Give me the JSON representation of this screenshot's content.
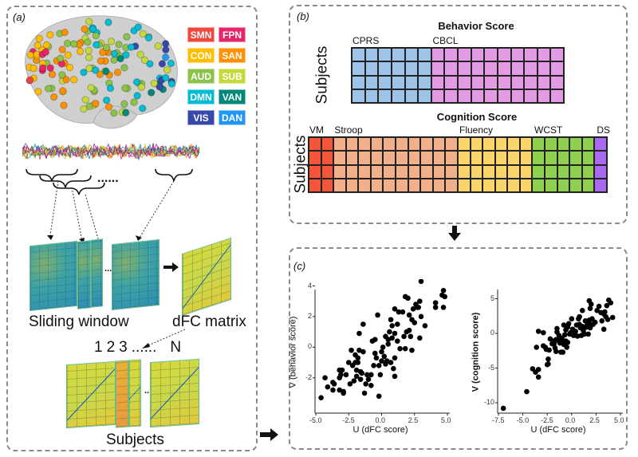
{
  "panels": {
    "a": "(a)",
    "b": "(b)",
    "c": "(c)"
  },
  "legend": [
    {
      "label": "SMN",
      "color": "#f2473c"
    },
    {
      "label": "FPN",
      "color": "#e8256b"
    },
    {
      "label": "CON",
      "color": "#ffbf00"
    },
    {
      "label": "SAN",
      "color": "#ff9100"
    },
    {
      "label": "AUD",
      "color": "#8bc34a"
    },
    {
      "label": "SUB",
      "color": "#c6d83a"
    },
    {
      "label": "DMN",
      "color": "#00bcd4"
    },
    {
      "label": "VAN",
      "color": "#00897b"
    },
    {
      "label": "VIS",
      "color": "#3949ab"
    },
    {
      "label": "DAN",
      "color": "#2196f3"
    }
  ],
  "pipeline": {
    "dots": "......",
    "sliding_window": "Sliding window",
    "dfc_matrix": "dFC matrix",
    "subject_numbers": [
      "1",
      "2",
      "3",
      "......",
      "N"
    ],
    "subjects": "Subjects"
  },
  "behavior": {
    "title": "Behavior Score",
    "row_label": "Subjects",
    "rows": 4,
    "groups": [
      {
        "label": "CPRS",
        "cols": 6,
        "color": "#9dc3e6"
      },
      {
        "label": "CBCL",
        "cols": 10,
        "color": "#e39be3"
      }
    ]
  },
  "cognition": {
    "title": "Cognition Score",
    "row_label": "Subjects",
    "rows": 4,
    "groups": [
      {
        "label": "VM",
        "cols": 2,
        "color": "#f5563a"
      },
      {
        "label": "Stroop",
        "cols": 10,
        "color": "#f2b08a"
      },
      {
        "label": "Fluency",
        "cols": 6,
        "color": "#fcd56a"
      },
      {
        "label": "WCST",
        "cols": 5,
        "color": "#8fd14f"
      },
      {
        "label": "DS",
        "cols": 1,
        "color": "#a86af0"
      }
    ]
  },
  "chart_data": [
    {
      "type": "scatter",
      "xlabel": "U (dFC score)",
      "ylabel": "V (behavior score)",
      "xlim": [
        -5,
        5
      ],
      "ylim": [
        -3.4,
        4.6
      ],
      "xticks": [
        "-5.0",
        "-2.5",
        "0.0",
        "2.5",
        "5.0"
      ],
      "xtick_values": [
        -5,
        -2.5,
        0,
        2.5,
        5
      ],
      "yticks": [
        "-2",
        "0",
        "2",
        "4"
      ],
      "ytick_values": [
        -2,
        0,
        2,
        4
      ],
      "points": [
        [
          -4.6,
          -3.3
        ],
        [
          -4.3,
          -2.0
        ],
        [
          -4.1,
          -2.6
        ],
        [
          -3.7,
          -2.3
        ],
        [
          -3.6,
          -2.4
        ],
        [
          -3.7,
          -2.8
        ],
        [
          -3.2,
          -1.5
        ],
        [
          -3.0,
          -1.5
        ],
        [
          -3.1,
          -1.8
        ],
        [
          -3.2,
          -2.0
        ],
        [
          -3.2,
          -2.8
        ],
        [
          -2.9,
          -2.9
        ],
        [
          -2.9,
          -3.0
        ],
        [
          -2.7,
          -1.8
        ],
        [
          -2.5,
          -1.0
        ],
        [
          -2.4,
          -2.4
        ],
        [
          -2.3,
          -0.2
        ],
        [
          -2.2,
          -1.2
        ],
        [
          -2.1,
          -2.2
        ],
        [
          -2.0,
          -0.5
        ],
        [
          -2.0,
          -1.0
        ],
        [
          -1.9,
          -1.5
        ],
        [
          -1.9,
          -1.9
        ],
        [
          -1.8,
          -0.7
        ],
        [
          -1.8,
          -1.0
        ],
        [
          -1.7,
          -0.2
        ],
        [
          -1.7,
          0.9
        ],
        [
          -1.6,
          -1.6
        ],
        [
          -1.6,
          -2.1
        ],
        [
          -1.5,
          -1.7
        ],
        [
          -1.4,
          1.5
        ],
        [
          -1.4,
          -0.3
        ],
        [
          -1.3,
          -3.0
        ],
        [
          -1.2,
          -2.4
        ],
        [
          -1.1,
          -1.8
        ],
        [
          -1.0,
          -2.1
        ],
        [
          -0.8,
          -1.8
        ],
        [
          -0.8,
          -2.5
        ],
        [
          -0.7,
          0.4
        ],
        [
          -0.6,
          -1.2
        ],
        [
          -0.5,
          -0.4
        ],
        [
          -0.5,
          0.5
        ],
        [
          -0.4,
          -0.7
        ],
        [
          -0.3,
          2.1
        ],
        [
          -0.2,
          -1.2
        ],
        [
          -0.2,
          -3.2
        ],
        [
          -0.1,
          -1.8
        ],
        [
          0.0,
          -0.9
        ],
        [
          0.0,
          -0.3
        ],
        [
          0.1,
          0.0
        ],
        [
          0.2,
          -0.6
        ],
        [
          0.3,
          -1.1
        ],
        [
          0.3,
          0.7
        ],
        [
          0.4,
          -0.9
        ],
        [
          0.5,
          0.5
        ],
        [
          0.5,
          0.2
        ],
        [
          0.6,
          1.0
        ],
        [
          0.7,
          -1.0
        ],
        [
          0.7,
          1.8
        ],
        [
          0.8,
          0.6
        ],
        [
          0.8,
          1.4
        ],
        [
          0.9,
          -1.4
        ],
        [
          1.0,
          0.9
        ],
        [
          1.0,
          -0.7
        ],
        [
          1.0,
          -1.9
        ],
        [
          1.0,
          2.5
        ],
        [
          1.2,
          1.5
        ],
        [
          1.2,
          0.4
        ],
        [
          1.3,
          2.3
        ],
        [
          1.4,
          -0.1
        ],
        [
          1.6,
          2.3
        ],
        [
          1.7,
          0.7
        ],
        [
          1.8,
          3.3
        ],
        [
          1.8,
          -0.1
        ],
        [
          1.9,
          1.0
        ],
        [
          2.0,
          3.2
        ],
        [
          2.1,
          2.1
        ],
        [
          2.1,
          1.1
        ],
        [
          2.2,
          0.7
        ],
        [
          2.3,
          1.8
        ],
        [
          2.3,
          -0.2
        ],
        [
          2.4,
          2.5
        ],
        [
          2.5,
          1.6
        ],
        [
          2.6,
          2.8
        ],
        [
          2.7,
          2.6
        ],
        [
          2.8,
          2.6
        ],
        [
          2.9,
          3.0
        ],
        [
          2.9,
          0.6
        ],
        [
          3.0,
          4.3
        ],
        [
          3.0,
          2.0
        ],
        [
          3.3,
          1.4
        ],
        [
          4.1,
          2.9
        ],
        [
          4.1,
          2.6
        ],
        [
          4.6,
          3.4
        ],
        [
          4.7,
          3.7
        ],
        [
          4.7,
          2.6
        ],
        [
          4.8,
          3.3
        ]
      ]
    },
    {
      "type": "scatter",
      "xlabel": "U (dFC score)",
      "ylabel": "V (cognition score)",
      "xlim": [
        -7.5,
        5
      ],
      "ylim": [
        -11.5,
        6
      ],
      "xticks": [
        "-7.5",
        "-5.0",
        "-2.5",
        "0.0",
        "2.5",
        "5.0"
      ],
      "xtick_values": [
        -7.5,
        -5,
        -2.5,
        0,
        2.5,
        5
      ],
      "yticks": [
        "-10",
        "-5",
        "0",
        "5"
      ],
      "ytick_values": [
        -10,
        -5,
        0,
        5
      ],
      "points": [
        [
          -7,
          -10.8
        ],
        [
          -4.6,
          -8.4
        ],
        [
          -4.0,
          -5.1
        ],
        [
          -3.7,
          -5.6
        ],
        [
          -3.4,
          -5.2
        ],
        [
          -3.4,
          -6.3
        ],
        [
          -3.6,
          -2.0
        ],
        [
          -3.4,
          0.3
        ],
        [
          -2.9,
          0.1
        ],
        [
          -2.9,
          -1.8
        ],
        [
          -2.7,
          -2.0
        ],
        [
          -2.6,
          -2.3
        ],
        [
          -2.5,
          -4.5
        ],
        [
          -2.4,
          -4.4
        ],
        [
          -2.4,
          -3.7
        ],
        [
          -2.3,
          -2.4
        ],
        [
          -2.2,
          -0.8
        ],
        [
          -2.0,
          -1.5
        ],
        [
          -1.9,
          -1.1
        ],
        [
          -1.8,
          -1.5
        ],
        [
          -1.7,
          -2.1
        ],
        [
          -1.6,
          -0.9
        ],
        [
          -1.6,
          -2.6
        ],
        [
          -1.5,
          0.2
        ],
        [
          -1.5,
          0.7
        ],
        [
          -1.4,
          -1.0
        ],
        [
          -1.3,
          -0.3
        ],
        [
          -1.2,
          -1.4
        ],
        [
          -1.1,
          -2.7
        ],
        [
          -1.0,
          -0.7
        ],
        [
          -1.0,
          -1.3
        ],
        [
          -0.9,
          -2.7
        ],
        [
          -0.8,
          -1.6
        ],
        [
          -0.8,
          1.2
        ],
        [
          -0.7,
          -0.2
        ],
        [
          -0.6,
          -1.1
        ],
        [
          -0.6,
          0.5
        ],
        [
          -0.5,
          -2.0
        ],
        [
          -0.4,
          0.9
        ],
        [
          -0.4,
          -1.3
        ],
        [
          -0.3,
          1.4
        ],
        [
          -0.2,
          -0.1
        ],
        [
          -0.1,
          0.1
        ],
        [
          0.0,
          2.1
        ],
        [
          0.1,
          0.6
        ],
        [
          0.2,
          -0.3
        ],
        [
          0.3,
          0.0
        ],
        [
          0.4,
          0.3
        ],
        [
          0.5,
          1.2
        ],
        [
          0.6,
          -0.4
        ],
        [
          0.7,
          2.1
        ],
        [
          0.8,
          1.3
        ],
        [
          0.8,
          2.4
        ],
        [
          0.9,
          0.8
        ],
        [
          1.0,
          -0.3
        ],
        [
          1.1,
          3.3
        ],
        [
          1.1,
          1.0
        ],
        [
          1.2,
          0.4
        ],
        [
          1.3,
          -0.1
        ],
        [
          1.4,
          1.8
        ],
        [
          1.5,
          0.9
        ],
        [
          1.6,
          1.3
        ],
        [
          1.7,
          -0.1
        ],
        [
          1.8,
          4.7
        ],
        [
          1.8,
          1.9
        ],
        [
          1.9,
          3.6
        ],
        [
          1.9,
          0.8
        ],
        [
          2.0,
          4.2
        ],
        [
          2.0,
          1.3
        ],
        [
          2.1,
          2.1
        ],
        [
          2.2,
          1.3
        ],
        [
          2.4,
          1.6
        ],
        [
          2.6,
          3.3
        ],
        [
          2.8,
          3.9
        ],
        [
          3.0,
          3.0
        ],
        [
          3.1,
          1.8
        ],
        [
          3.3,
          0.6
        ],
        [
          3.4,
          3.1
        ],
        [
          3.5,
          2.4
        ],
        [
          3.6,
          4.0
        ],
        [
          3.7,
          2.0
        ],
        [
          3.8,
          4.8
        ],
        [
          4.0,
          4.4
        ],
        [
          4.2,
          2.3
        ],
        [
          3.3,
          2.8
        ]
      ]
    }
  ]
}
